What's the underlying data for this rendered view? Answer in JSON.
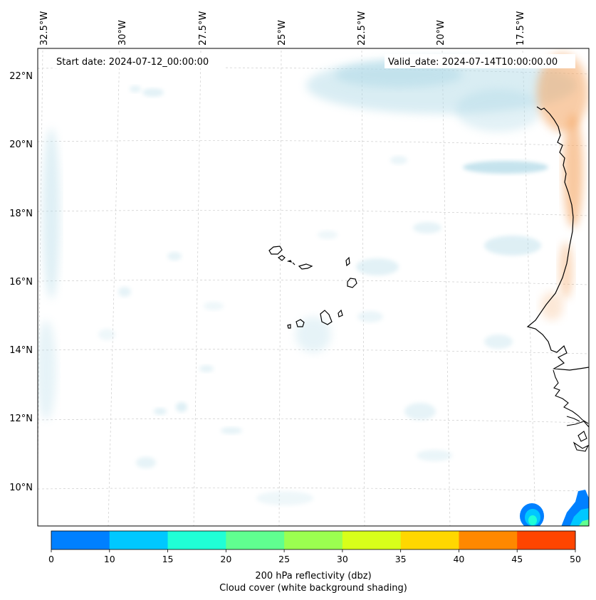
{
  "map": {
    "start_date": "Start date: 2024-07-12_00:00:00",
    "valid_date": "Valid_date: 2024-07-14T10:00:00.00",
    "lon_labels": [
      "32.5°W",
      "30°W",
      "27.5°W",
      "25°W",
      "22.5°W",
      "20°W",
      "17.5°W"
    ],
    "lat_labels": [
      "22°N",
      "20°N",
      "18°N",
      "16°N",
      "14°N",
      "12°N",
      "10°N"
    ]
  },
  "colorbar": {
    "colors": [
      "#0080ff",
      "#00c8ff",
      "#20ffd6",
      "#60ff90",
      "#9bff50",
      "#d8ff1a",
      "#ffd700",
      "#ff8800",
      "#ff4500"
    ],
    "ticks": [
      "0",
      "10",
      "15",
      "20",
      "25",
      "30",
      "35",
      "40",
      "45",
      "50"
    ],
    "title_line1": "200 hPa reflectivity (dbz)",
    "title_line2": "Cloud cover (white background shading)"
  },
  "colors": {
    "cloud": "#add8e6",
    "warm": "#f4a460",
    "coast": "#000000",
    "grid": "#cccccc"
  }
}
